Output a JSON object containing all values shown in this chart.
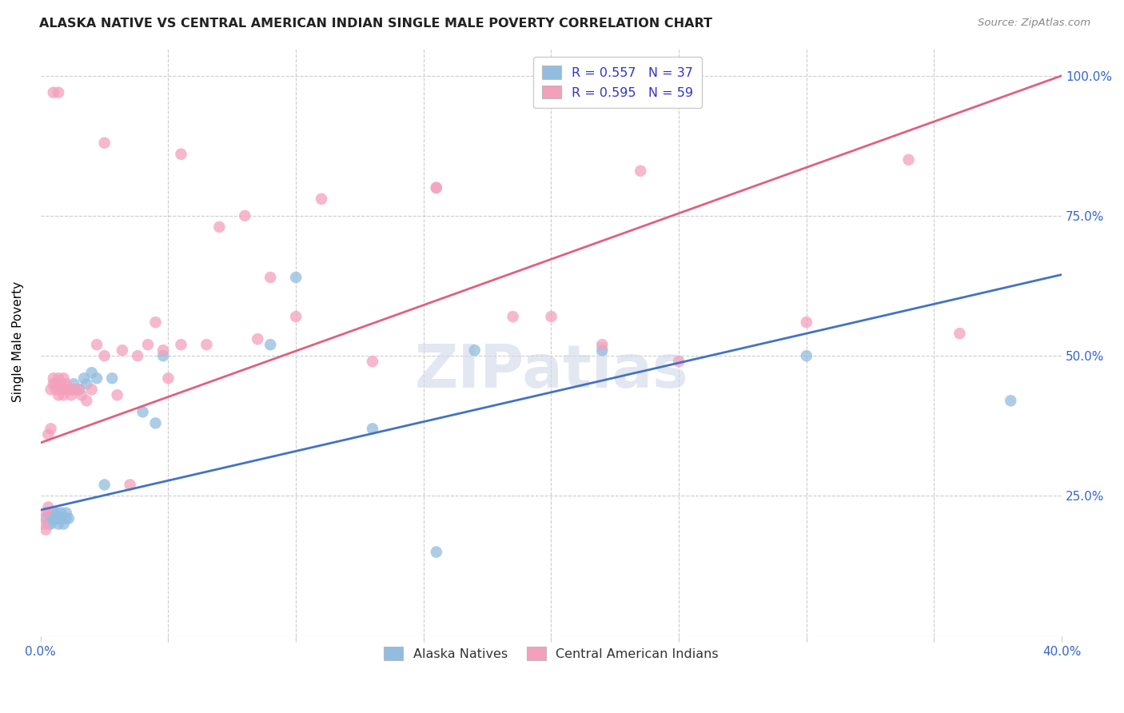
{
  "title": "ALASKA NATIVE VS CENTRAL AMERICAN INDIAN SINGLE MALE POVERTY CORRELATION CHART",
  "source": "Source: ZipAtlas.com",
  "ylabel": "Single Male Poverty",
  "yticks": [
    "25.0%",
    "50.0%",
    "75.0%",
    "100.0%"
  ],
  "ytick_vals": [
    0.25,
    0.5,
    0.75,
    1.0
  ],
  "xlim": [
    0.0,
    0.4
  ],
  "ylim": [
    0.0,
    1.05
  ],
  "legend_entries": [
    {
      "label": "R = 0.557   N = 37",
      "color": "#a8c4e0"
    },
    {
      "label": "R = 0.595   N = 59",
      "color": "#f4a7b9"
    }
  ],
  "legend_label_bottom": [
    "Alaska Natives",
    "Central American Indians"
  ],
  "blue_color": "#92bde0",
  "pink_color": "#f4a0bc",
  "blue_line_color": "#4472c4",
  "pink_line_color": "#e06080",
  "watermark": "ZIPatlas",
  "blue_line": [
    0.0,
    0.225,
    0.4,
    0.645
  ],
  "pink_line": [
    0.0,
    0.345,
    0.4,
    1.0
  ],
  "blue_x": [
    0.002,
    0.003,
    0.003,
    0.004,
    0.004,
    0.005,
    0.005,
    0.006,
    0.006,
    0.007,
    0.007,
    0.008,
    0.008,
    0.009,
    0.01,
    0.01,
    0.011,
    0.012,
    0.013,
    0.015,
    0.017,
    0.018,
    0.02,
    0.022,
    0.025,
    0.028,
    0.04,
    0.045,
    0.048,
    0.09,
    0.1,
    0.13,
    0.155,
    0.17,
    0.22,
    0.3,
    0.38
  ],
  "blue_y": [
    0.21,
    0.2,
    0.22,
    0.21,
    0.2,
    0.22,
    0.21,
    0.21,
    0.22,
    0.2,
    0.21,
    0.22,
    0.21,
    0.2,
    0.21,
    0.22,
    0.21,
    0.44,
    0.45,
    0.44,
    0.46,
    0.45,
    0.47,
    0.46,
    0.27,
    0.46,
    0.4,
    0.38,
    0.5,
    0.52,
    0.64,
    0.37,
    0.15,
    0.51,
    0.51,
    0.5,
    0.42
  ],
  "pink_x": [
    0.001,
    0.002,
    0.002,
    0.003,
    0.003,
    0.004,
    0.004,
    0.005,
    0.005,
    0.006,
    0.006,
    0.007,
    0.007,
    0.008,
    0.008,
    0.009,
    0.009,
    0.01,
    0.01,
    0.011,
    0.012,
    0.013,
    0.015,
    0.016,
    0.018,
    0.02,
    0.022,
    0.025,
    0.03,
    0.032,
    0.035,
    0.038,
    0.042,
    0.045,
    0.048,
    0.05,
    0.055,
    0.065,
    0.085,
    0.09,
    0.1,
    0.13,
    0.155,
    0.185,
    0.2,
    0.22,
    0.25,
    0.3,
    0.36,
    0.005,
    0.007,
    0.025,
    0.055,
    0.07,
    0.08,
    0.11,
    0.155,
    0.235,
    0.34
  ],
  "pink_y": [
    0.2,
    0.19,
    0.22,
    0.23,
    0.36,
    0.37,
    0.44,
    0.45,
    0.46,
    0.44,
    0.45,
    0.46,
    0.43,
    0.44,
    0.45,
    0.46,
    0.43,
    0.44,
    0.45,
    0.44,
    0.43,
    0.44,
    0.44,
    0.43,
    0.42,
    0.44,
    0.52,
    0.5,
    0.43,
    0.51,
    0.27,
    0.5,
    0.52,
    0.56,
    0.51,
    0.46,
    0.52,
    0.52,
    0.53,
    0.64,
    0.57,
    0.49,
    0.8,
    0.57,
    0.57,
    0.52,
    0.49,
    0.56,
    0.54,
    0.97,
    0.97,
    0.88,
    0.86,
    0.73,
    0.75,
    0.78,
    0.8,
    0.83,
    0.85
  ]
}
